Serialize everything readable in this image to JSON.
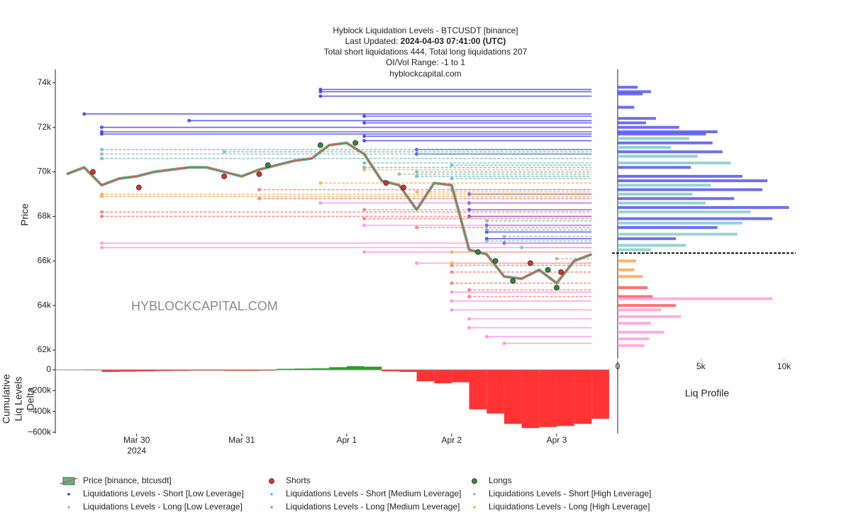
{
  "chart_data": [
    {
      "type": "line",
      "title": "Hyblock Liquidation Levels - BTCUSDT [binance]",
      "updated_label": "Last Updated:",
      "updated": "2024-04-03 07:41:00 (UTC)",
      "totals": "Total short liquidations 444, Total long liquidations 207",
      "range": "OI/Vol Range: -1 to 1",
      "source": "hyblockcapital.com",
      "watermark": "HYBLOCKCAPITAL.COM",
      "ylabel": "Price",
      "x": [
        "2024-03-29 08:00",
        "2024-03-29 12:00",
        "2024-03-29 16:00",
        "2024-03-29 20:00",
        "2024-03-30 00:00",
        "2024-03-30 04:00",
        "2024-03-30 08:00",
        "2024-03-30 12:00",
        "2024-03-30 16:00",
        "2024-03-30 20:00",
        "2024-03-31 00:00",
        "2024-03-31 04:00",
        "2024-03-31 08:00",
        "2024-03-31 12:00",
        "2024-03-31 16:00",
        "2024-03-31 20:00",
        "2024-04-01 00:00",
        "2024-04-01 04:00",
        "2024-04-01 08:00",
        "2024-04-01 12:00",
        "2024-04-01 16:00",
        "2024-04-01 20:00",
        "2024-04-02 00:00",
        "2024-04-02 04:00",
        "2024-04-02 08:00",
        "2024-04-02 12:00",
        "2024-04-02 16:00",
        "2024-04-02 20:00",
        "2024-04-03 00:00",
        "2024-04-03 04:00",
        "2024-04-03 08:00"
      ],
      "xlim": [
        "2024-03-29 05:24",
        "2024-04-03 12:10"
      ],
      "ylim": [
        61650,
        74600
      ],
      "yticks": [
        {
          "value": 62000,
          "label": "62k"
        },
        {
          "value": 64000,
          "label": "64k"
        },
        {
          "value": 66000,
          "label": "66k"
        },
        {
          "value": 68000,
          "label": "68k"
        },
        {
          "value": 70000,
          "label": "70k"
        },
        {
          "value": 72000,
          "label": "72k"
        },
        {
          "value": 74000,
          "label": "74k"
        }
      ],
      "series": [
        {
          "name": "Price [binance, btcusdt]",
          "mode": "line",
          "color": "#d9534f",
          "fill": "#5cb88a",
          "values": [
            69900,
            70200,
            69400,
            69700,
            69800,
            70000,
            70100,
            70200,
            70200,
            70000,
            69800,
            70100,
            70300,
            70500,
            70600,
            71200,
            71300,
            70800,
            69600,
            69400,
            68300,
            69500,
            69400,
            66500,
            66300,
            65300,
            65200,
            65600,
            65000,
            66000,
            66300
          ]
        },
        {
          "name": "Shorts",
          "mode": "markers",
          "color": "#e03030",
          "x": [
            "2024-03-29 14:00",
            "2024-03-30 00:30",
            "2024-03-30 20:00",
            "2024-03-31 04:00",
            "2024-04-01 09:00",
            "2024-04-01 13:00",
            "2024-04-02 18:00",
            "2024-04-03 01:00"
          ],
          "values": [
            70000,
            69300,
            69800,
            69900,
            69500,
            69300,
            65900,
            65500
          ]
        },
        {
          "name": "Longs",
          "mode": "markers",
          "color": "#2e8b3e",
          "x": [
            "2024-03-31 06:00",
            "2024-03-31 18:00",
            "2024-04-01 02:00",
            "2024-04-02 06:00",
            "2024-04-02 10:00",
            "2024-04-02 14:00",
            "2024-04-02 22:00",
            "2024-04-03 00:00"
          ],
          "values": [
            70300,
            71200,
            71300,
            66400,
            66000,
            65100,
            65600,
            64800
          ]
        },
        {
          "name": "Liquidations Levels - Short [Low Leverage]",
          "mode": "levels",
          "color": "#3333ee",
          "x": [
            "2024-03-29 12:00",
            "2024-03-29 16:00",
            "2024-03-29 16:00",
            "2024-03-29 16:00",
            "2024-03-30 12:00",
            "2024-03-31 18:00",
            "2024-03-31 18:00",
            "2024-03-31 18:00",
            "2024-04-01 04:00",
            "2024-04-01 04:00",
            "2024-04-01 04:00",
            "2024-04-01 04:00",
            "2024-04-01 16:00",
            "2024-04-01 16:00",
            "2024-04-02 04:00",
            "2024-04-02 04:00",
            "2024-04-02 04:00",
            "2024-04-02 04:00",
            "2024-04-02 08:00",
            "2024-04-02 08:00",
            "2024-04-02 08:00",
            "2024-04-02 12:00"
          ],
          "values": [
            72600,
            72000,
            71800,
            71700,
            72300,
            73700,
            73600,
            73400,
            72500,
            72200,
            71600,
            71400,
            71000,
            70800,
            69000,
            68600,
            68300,
            68000,
            67600,
            67300,
            67000,
            66800
          ]
        },
        {
          "name": "Liquidations Levels - Short [Medium Leverage]",
          "mode": "levels",
          "color": "#66bbbb",
          "x": [
            "2024-03-29 16:00",
            "2024-03-29 16:00",
            "2024-03-30 20:00",
            "2024-04-01 04:00",
            "2024-04-01 04:00",
            "2024-04-01 16:00",
            "2024-04-01 16:00",
            "2024-04-02 00:00",
            "2024-04-02 00:00",
            "2024-04-02 00:00",
            "2024-04-02 08:00",
            "2024-04-02 08:00",
            "2024-04-02 08:00",
            "2024-04-02 16:00"
          ],
          "values": [
            71000,
            70600,
            70900,
            70400,
            70200,
            70000,
            69800,
            70300,
            69700,
            69200,
            67800,
            67400,
            66900,
            66600
          ]
        },
        {
          "name": "Liquidations Levels - Short [High Leverage]",
          "mode": "levels",
          "color": "#aaaaaa",
          "x": [
            "2024-03-29 16:00",
            "2024-04-01 12:00",
            "2024-04-02 12:00",
            "2024-04-03 00:00"
          ],
          "values": [
            70800,
            69900,
            67100,
            66100
          ]
        },
        {
          "name": "Liquidations Levels - Long [Low Leverage]",
          "mode": "levels",
          "color": "#ff88dd",
          "x": [
            "2024-03-29 16:00",
            "2024-03-29 16:00",
            "2024-03-31 18:00",
            "2024-04-01 04:00",
            "2024-04-01 04:00",
            "2024-04-01 16:00",
            "2024-04-02 00:00",
            "2024-04-02 00:00",
            "2024-04-02 00:00",
            "2024-04-02 04:00",
            "2024-04-02 04:00",
            "2024-04-02 08:00",
            "2024-04-02 12:00"
          ],
          "values": [
            66800,
            66600,
            68600,
            67600,
            66400,
            65900,
            64600,
            64200,
            63800,
            63400,
            63000,
            62600,
            62300
          ]
        },
        {
          "name": "Liquidations Levels - Long [Medium Leverage]",
          "mode": "levels",
          "color": "#ff7070",
          "x": [
            "2024-03-29 16:00",
            "2024-03-29 16:00",
            "2024-03-31 04:00",
            "2024-03-31 04:00",
            "2024-04-01 04:00",
            "2024-04-01 04:00",
            "2024-04-01 16:00",
            "2024-04-02 00:00",
            "2024-04-02 00:00",
            "2024-04-02 00:00",
            "2024-04-02 04:00",
            "2024-04-02 04:00"
          ],
          "values": [
            68200,
            68000,
            69200,
            68800,
            68300,
            67900,
            67500,
            65800,
            65500,
            65000,
            64700,
            64400
          ]
        },
        {
          "name": "Liquidations Levels - Long [High Leverage]",
          "mode": "levels",
          "color": "#ffaa44",
          "x": [
            "2024-03-29 16:00",
            "2024-03-29 16:00",
            "2024-03-31 18:00",
            "2024-04-01 04:00",
            "2024-04-01 16:00",
            "2024-04-02 00:00",
            "2024-04-02 00:00"
          ],
          "values": [
            69000,
            68900,
            69500,
            70100,
            69100,
            66400,
            65900
          ]
        }
      ]
    },
    {
      "type": "area",
      "ylabel": [
        "Cumulative",
        "Liq Levels",
        "Delta"
      ],
      "values": [
        0,
        -5000,
        -20000,
        -18000,
        -15000,
        -12000,
        -10000,
        -8000,
        -8000,
        -10000,
        -10000,
        -8000,
        10000,
        12000,
        15000,
        25000,
        35000,
        30000,
        -15000,
        -20000,
        -110000,
        -130000,
        -120000,
        -380000,
        -420000,
        -520000,
        -560000,
        -550000,
        -540000,
        -520000,
        -470000
      ],
      "positive_color": "#2e9a2e",
      "negative_color": "#ff3333",
      "ylim": [
        -613000,
        95000
      ],
      "yticks": [
        {
          "value": -600000,
          "label": "−600k"
        },
        {
          "value": -400000,
          "label": "−400k"
        },
        {
          "value": -200000,
          "label": "−200k"
        },
        0
      ],
      "xticks": [
        {
          "value": "2024-03-30 00:00",
          "label": "Mar 30"
        },
        {
          "value": "2024-03-31 00:00",
          "label": "Mar 31"
        },
        {
          "value": "2024-04-01 00:00",
          "label": "Apr 1"
        },
        {
          "value": "2024-04-02 00:00",
          "label": "Apr 2"
        },
        {
          "value": "2024-04-03 00:00",
          "label": "Apr 3"
        }
      ],
      "xyear": "2024"
    },
    {
      "type": "barh",
      "xlabel": "Liq Profile",
      "xlim": [
        0,
        10700
      ],
      "xticks": [
        0,
        {
          "value": 5000,
          "label": "5k"
        },
        {
          "value": 10000,
          "label": "10k"
        }
      ],
      "current_price": 66350,
      "y": [
        73800,
        73600,
        73500,
        72900,
        72400,
        72200,
        72000,
        71800,
        71700,
        71500,
        71300,
        71100,
        70900,
        70700,
        70400,
        70200,
        69800,
        69600,
        69400,
        69200,
        69000,
        68800,
        68600,
        68400,
        68200,
        67900,
        67700,
        67500,
        67200,
        67000,
        66700,
        66500,
        66000,
        65600,
        65300,
        64800,
        64400,
        64300,
        64000,
        63800,
        63500,
        63200,
        62800,
        62500,
        62200
      ],
      "values": [
        1200,
        2000,
        1500,
        1000,
        2300,
        1700,
        3700,
        6000,
        5300,
        4300,
        5700,
        3200,
        6300,
        4800,
        6800,
        4400,
        7500,
        9000,
        5600,
        8700,
        4500,
        7000,
        5300,
        10300,
        8000,
        9300,
        7500,
        6000,
        7200,
        3500,
        4100,
        2000,
        1100,
        1000,
        1500,
        1800,
        2100,
        9300,
        3500,
        2600,
        3800,
        2000,
        2800,
        1900,
        1600
      ],
      "colors": [
        "#4a4af0",
        "#4a4af0",
        "#4a4af0",
        "#4a4af0",
        "#4a4af0",
        "#4a4af0",
        "#4a4af0",
        "#4a4af0",
        "#4a4af0",
        "#7cc8c8",
        "#4a4af0",
        "#7cc8c8",
        "#4a4af0",
        "#7cc8c8",
        "#7cc8c8",
        "#4a4af0",
        "#4a4af0",
        "#4a4af0",
        "#7cc8c8",
        "#4a4af0",
        "#7cc8c8",
        "#4a4af0",
        "#7cc8c8",
        "#4a4af0",
        "#7cc8c8",
        "#4a4af0",
        "#7cc8c8",
        "#4a4af0",
        "#7cc8c8",
        "#4a4af0",
        "#7cc8c8",
        "#7cc8c8",
        "#ffa040",
        "#ffa040",
        "#ffa040",
        "#ff5050",
        "#ff5050",
        "#ff99dd",
        "#ff5050",
        "#ff99dd",
        "#ff99dd",
        "#ff99dd",
        "#ff99dd",
        "#ff99dd",
        "#ff99dd"
      ]
    }
  ]
}
